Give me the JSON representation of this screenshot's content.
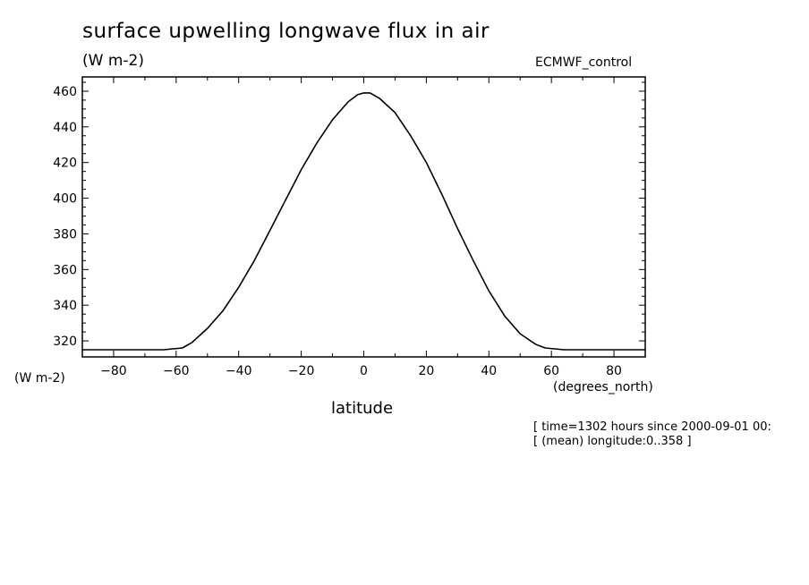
{
  "chart_data": {
    "type": "line",
    "title": "surface upwelling longwave flux in air",
    "units_label": "(W m-2)",
    "dataset": "ECMWF_control",
    "ylabel": "(W m-2)",
    "xlabel": "latitude",
    "x_units": "(degrees_north)",
    "xlim": [
      -90,
      90
    ],
    "ylim": [
      311,
      468
    ],
    "x_ticks": [
      -80,
      -60,
      -40,
      -20,
      0,
      20,
      40,
      60,
      80
    ],
    "y_ticks": [
      320,
      340,
      360,
      380,
      400,
      420,
      440,
      460
    ],
    "annotations": [
      "[ time=1302 hours since 2000-09-01 00:",
      "[ (mean) longitude:0..358 ]"
    ],
    "series": [
      {
        "name": "surface upwelling longwave flux in air",
        "x": [
          -90,
          -80,
          -70,
          -64,
          -58,
          -55,
          -50,
          -45,
          -40,
          -35,
          -30,
          -25,
          -20,
          -15,
          -10,
          -5,
          -2,
          0,
          2,
          5,
          10,
          15,
          20,
          25,
          30,
          35,
          40,
          45,
          50,
          55,
          58,
          64,
          70,
          80,
          90
        ],
        "y": [
          315,
          315,
          315,
          315,
          316,
          319,
          327,
          337,
          350,
          365,
          382,
          399,
          416,
          431,
          444,
          454,
          458,
          459,
          459,
          456,
          448,
          435,
          420,
          402,
          383,
          365,
          348,
          334,
          324,
          318,
          316,
          315,
          315,
          315,
          315
        ]
      }
    ]
  }
}
